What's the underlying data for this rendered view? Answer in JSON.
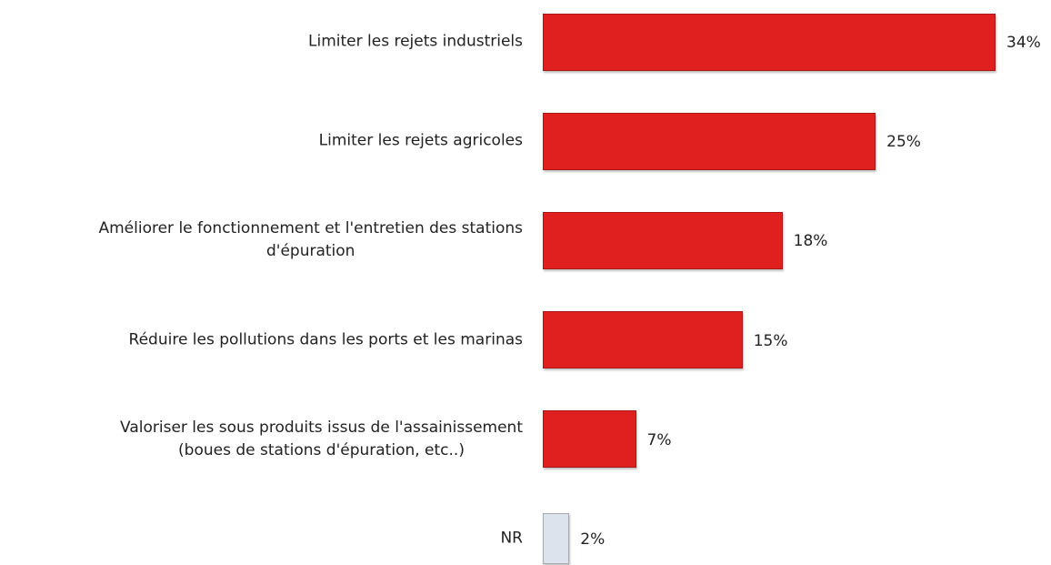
{
  "chart_data": {
    "type": "bar",
    "orientation": "horizontal",
    "categories": [
      "Limiter les rejets industriels",
      "Limiter les rejets agricoles",
      "Améliorer le fonctionnement et l'entretien des stations\nd'épuration",
      "Réduire les pollutions dans les ports et les marinas",
      "Valoriser les sous produits issus de l'assainissement\n(boues de stations d'épuration, etc..)",
      "NR"
    ],
    "values": [
      34,
      25,
      18,
      15,
      7,
      2
    ],
    "value_labels": [
      "34%",
      "25%",
      "18%",
      "15%",
      "7%",
      "2%"
    ],
    "colors": [
      "#e0201f",
      "#e0201f",
      "#e0201f",
      "#e0201f",
      "#e0201f",
      "#dde3ec"
    ]
  }
}
